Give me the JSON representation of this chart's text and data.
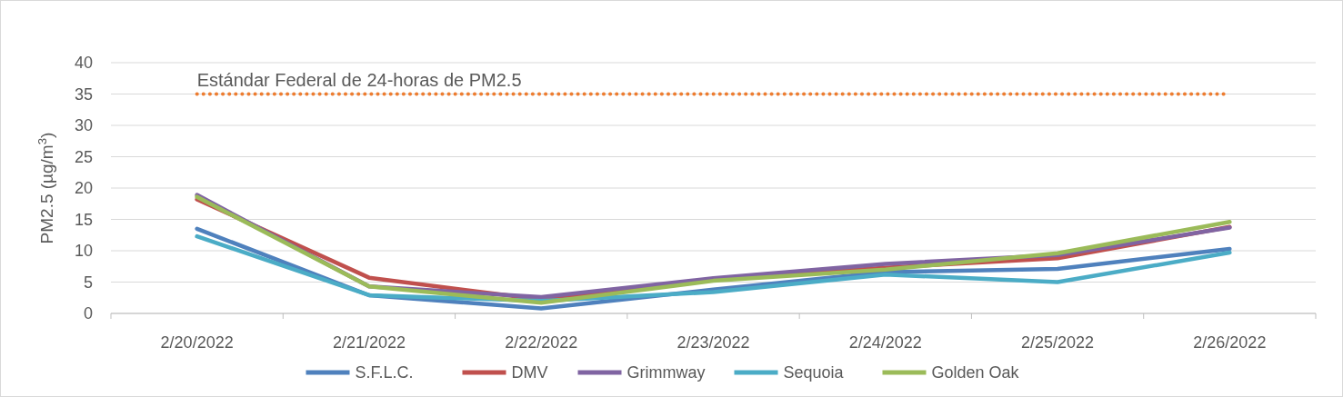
{
  "chart_data": {
    "type": "line",
    "ylabel": "PM2.5 (µg/m$^{3}$)",
    "categories": [
      "2/20/2022",
      "2/21/2022",
      "2/22/2022",
      "2/23/2022",
      "2/24/2022",
      "2/25/2022",
      "2/26/2022"
    ],
    "series": [
      {
        "name": "S.F.L.C.",
        "color": "#4f81bd",
        "values": [
          13.5,
          2.9,
          0.8,
          3.8,
          6.6,
          7.1,
          10.3
        ]
      },
      {
        "name": "DMV",
        "color": "#c0504d",
        "values": [
          18.2,
          5.7,
          2.2,
          5.5,
          7.3,
          8.8,
          13.8
        ]
      },
      {
        "name": "Grimmway",
        "color": "#8064a2",
        "values": [
          18.9,
          4.3,
          2.6,
          5.6,
          7.9,
          9.3,
          13.7
        ]
      },
      {
        "name": "Sequoia",
        "color": "#4bacc6",
        "values": [
          12.3,
          2.9,
          2.0,
          3.4,
          6.2,
          5.0,
          9.7
        ]
      },
      {
        "name": "Golden Oak",
        "color": "#9bbb59",
        "values": [
          18.6,
          4.3,
          1.7,
          5.2,
          7.0,
          9.6,
          14.6
        ]
      }
    ],
    "ylim": [
      0,
      40
    ],
    "yticks": [
      0,
      5,
      10,
      15,
      20,
      25,
      30,
      35,
      40
    ],
    "grid": "y",
    "legend": "bottom",
    "marker": "none",
    "line_style": "solid",
    "ref_lines": [
      {
        "axis": "y",
        "value": 35,
        "label": "Estándar Federal de 24-horas de PM2.5",
        "color": "#ed7d31",
        "line_style": "dotted"
      }
    ]
  }
}
